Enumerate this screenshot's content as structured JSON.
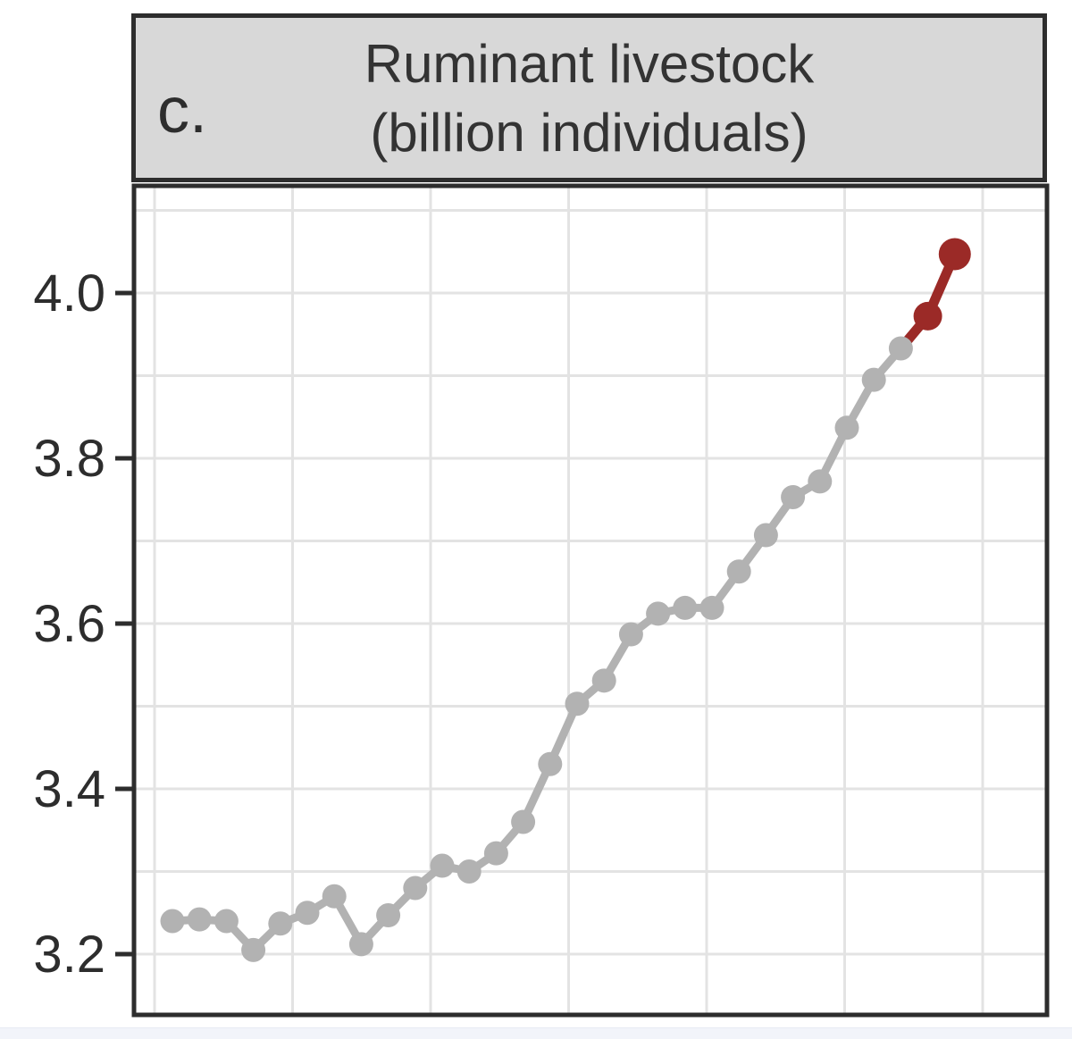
{
  "panel": {
    "label": "c.",
    "title_line1": "Ruminant livestock",
    "title_line2": "(billion individuals)",
    "header_bg": "#d8d8d8",
    "border_color": "#2d2d2d"
  },
  "axis": {
    "y_ticks": [
      {
        "label": "4.0",
        "value": 4.0
      },
      {
        "label": "3.8",
        "value": 3.8
      },
      {
        "label": "3.6",
        "value": 3.6
      },
      {
        "label": "3.4",
        "value": 3.4
      },
      {
        "label": "3.2",
        "value": 3.2
      }
    ],
    "y_gridline_values": [
      3.2,
      3.3,
      3.4,
      3.5,
      3.6,
      3.7,
      3.8,
      3.9,
      4.0,
      4.1
    ],
    "gridline_color": "#e3e3e3",
    "tick_color": "#2d2d2d",
    "label_color": "#2d2d2d"
  },
  "chart_data": {
    "type": "line",
    "title": "Ruminant livestock",
    "ylabel": "billion individuals",
    "ylim": [
      3.12,
      4.13
    ],
    "grid": "on",
    "x_tick_labels_visible": false,
    "n_points": 30,
    "values": [
      3.24,
      3.242,
      3.24,
      3.205,
      3.237,
      3.25,
      3.27,
      3.212,
      3.247,
      3.28,
      3.307,
      3.3,
      3.322,
      3.36,
      3.43,
      3.503,
      3.531,
      3.587,
      3.612,
      3.619,
      3.619,
      3.663,
      3.707,
      3.753,
      3.772,
      3.837,
      3.895,
      3.933,
      3.972,
      4.047
    ],
    "highlighted_last_n": 2,
    "series_color": "#b2b2b2",
    "highlight_color": "#9b2a27"
  }
}
